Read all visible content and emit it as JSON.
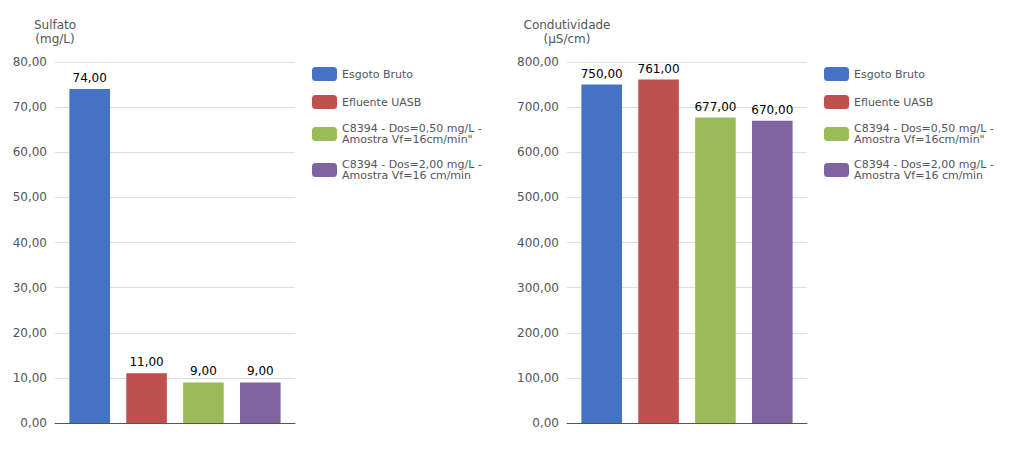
{
  "chart_data": [
    {
      "type": "bar",
      "ylabel": "Sulfato\n(mg/L)",
      "categories": [
        null
      ],
      "series": [
        {
          "name": "Esgoto Bruto",
          "color": "#4472C4",
          "values": [
            74.0
          ],
          "value_labels": [
            "74,00"
          ]
        },
        {
          "name": "Efluente UASB",
          "color": "#C0504D",
          "values": [
            11.0
          ],
          "value_labels": [
            "11,00"
          ]
        },
        {
          "name": "C8394 - Dos=0,50 mg/L -\nAmostra Vf=16cm/min\"",
          "color": "#9BBB59",
          "values": [
            9.0
          ],
          "value_labels": [
            "9,00"
          ]
        },
        {
          "name": "C8394 - Dos=2,00 mg/L -\nAmostra Vf=16 cm/min",
          "color": "#8064A2",
          "values": [
            9.0
          ],
          "value_labels": [
            "9,00"
          ]
        }
      ],
      "ylim": [
        0,
        80
      ],
      "yticks": [
        {
          "value": 0,
          "label": "0,00"
        },
        {
          "value": 10,
          "label": "10,00"
        },
        {
          "value": 20,
          "label": "20,00"
        },
        {
          "value": 30,
          "label": "30,00"
        },
        {
          "value": 40,
          "label": "40,00"
        },
        {
          "value": 50,
          "label": "50,00"
        },
        {
          "value": 60,
          "label": "60,00"
        },
        {
          "value": 70,
          "label": "70,00"
        },
        {
          "value": 80,
          "label": "80,00"
        }
      ],
      "grid": true,
      "legend": "right",
      "data_labels": true,
      "tick_labels": "y"
    },
    {
      "type": "bar",
      "ylabel": "Condutividade\n(μS/cm)",
      "categories": [
        null
      ],
      "series": [
        {
          "name": "Esgoto Bruto",
          "color": "#4472C4",
          "values": [
            750.0
          ],
          "value_labels": [
            "750,00"
          ]
        },
        {
          "name": "Efluente UASB",
          "color": "#C0504D",
          "values": [
            761.0
          ],
          "value_labels": [
            "761,00"
          ]
        },
        {
          "name": "C8394 - Dos=0,50 mg/L -\nAmostra Vf=16cm/min\"",
          "color": "#9BBB59",
          "values": [
            677.0
          ],
          "value_labels": [
            "677,00"
          ]
        },
        {
          "name": "C8394 - Dos=2,00 mg/L -\nAmostra Vf=16 cm/min",
          "color": "#8064A2",
          "values": [
            670.0
          ],
          "value_labels": [
            "670,00"
          ]
        }
      ],
      "ylim": [
        0,
        800
      ],
      "yticks": [
        {
          "value": 0,
          "label": "0,00"
        },
        {
          "value": 100,
          "label": "100,00"
        },
        {
          "value": 200,
          "label": "200,00"
        },
        {
          "value": 300,
          "label": "300,00"
        },
        {
          "value": 400,
          "label": "400,00"
        },
        {
          "value": 500,
          "label": "500,00"
        },
        {
          "value": 600,
          "label": "600,00"
        },
        {
          "value": 700,
          "label": "700,00"
        },
        {
          "value": 800,
          "label": "800,00"
        }
      ],
      "grid": true,
      "legend": "right",
      "data_labels": true,
      "tick_labels": "y"
    }
  ]
}
